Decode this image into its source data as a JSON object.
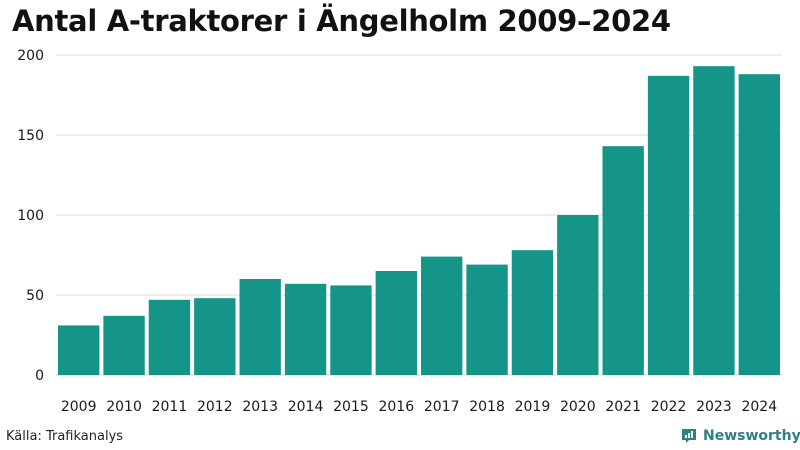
{
  "colors": {
    "bar": "#159587",
    "grid": "#dcdcdc",
    "brand": "#2f7f86"
  },
  "source": "Källa: Trafikanalys",
  "brand": {
    "name": "Newsworthy",
    "icon": "bar-chart-logo-icon"
  },
  "chart_data": {
    "type": "bar",
    "title": "Antal A-traktorer i Ängelholm 2009–2024",
    "xlabel": "",
    "ylabel": "",
    "categories": [
      "2009",
      "2010",
      "2011",
      "2012",
      "2013",
      "2014",
      "2015",
      "2016",
      "2017",
      "2018",
      "2019",
      "2020",
      "2021",
      "2022",
      "2023",
      "2024"
    ],
    "values": [
      31,
      37,
      47,
      48,
      60,
      57,
      56,
      65,
      74,
      69,
      78,
      100,
      143,
      187,
      193,
      188
    ],
    "ylim": [
      0,
      200
    ],
    "yticks": [
      0,
      50,
      100,
      150,
      200
    ],
    "grid": true,
    "legend": "none"
  }
}
